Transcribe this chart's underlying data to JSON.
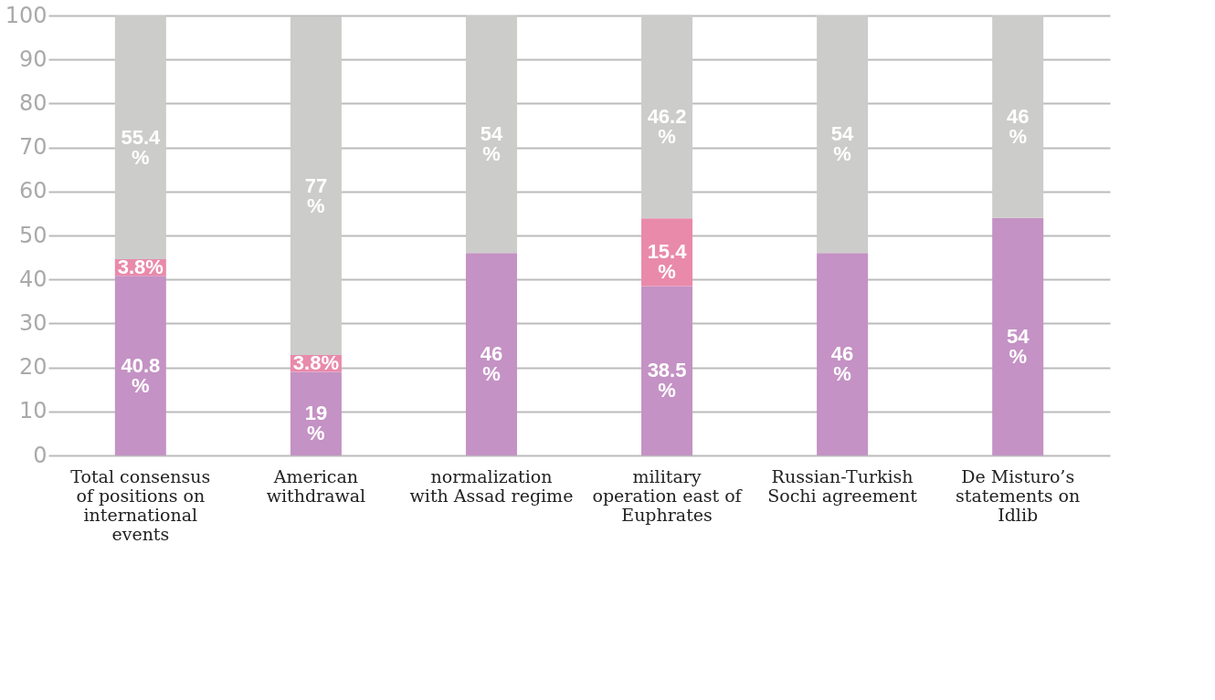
{
  "chart_data": {
    "type": "bar",
    "stacked": true,
    "categories": [
      "Total consensus of positions on international events",
      "American withdrawal",
      "normalization with Assad regime",
      "military operation east of Euphrates",
      "Russian-Turkish Sochi agreement",
      "De Misturo’s statements on Idlib"
    ],
    "series": [
      {
        "color": "#c492c4",
        "values": [
          40.8,
          19,
          46,
          38.5,
          46,
          54
        ],
        "value_labels": [
          "40.8\n%",
          "19\n%",
          "46\n%",
          "38.5\n%",
          "46\n%",
          "54\n%"
        ]
      },
      {
        "color": "#e98aaa",
        "values": [
          3.8,
          3.8,
          null,
          15.4,
          null,
          null
        ],
        "value_labels": [
          "3.8%",
          "3.8%",
          null,
          "15.4\n%",
          null,
          null
        ]
      },
      {
        "color": "#cccccb",
        "values": [
          55.4,
          77,
          54,
          46.2,
          54,
          46
        ],
        "value_labels": [
          "55.4\n%",
          "77\n%",
          "54\n%",
          "46.2\n%",
          "54\n%",
          "46\n%"
        ]
      }
    ],
    "ylim": [
      0,
      100
    ],
    "yticks": [
      0,
      10,
      20,
      30,
      40,
      50,
      60,
      70,
      80,
      90,
      100
    ],
    "grid": "y"
  }
}
